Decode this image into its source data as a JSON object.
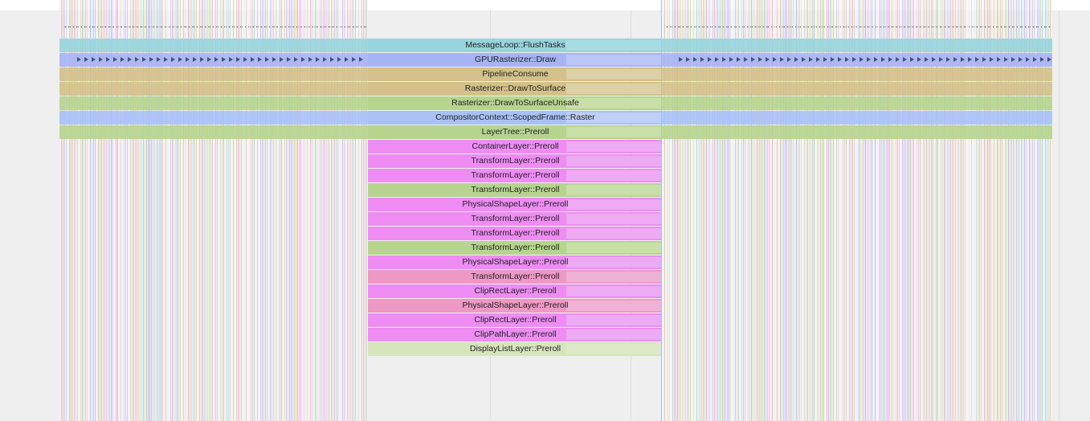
{
  "flame_chart": {
    "rows": [
      {
        "label": "MessageLoop::FlushTasks",
        "color": "#97d4dc",
        "overlay": "#a8dce3"
      },
      {
        "label": "GPURasterizer::Draw",
        "color": "#a6b4f4",
        "overlay": "#bcc6f7",
        "arrows": true
      },
      {
        "label": "PipelineConsume",
        "color": "#d4c08a",
        "overlay": "#ddd0a8"
      },
      {
        "label": "Rasterizer::DrawToSurface",
        "color": "#d4c08a",
        "overlay": "#ddd0a8"
      },
      {
        "label": "Rasterizer::DrawToSurfaceUnsafe",
        "color": "#b6d48e",
        "overlay": "#c8dfa8"
      },
      {
        "label": "CompositorContext::ScopedFrame::Raster",
        "color": "#a9c1f7",
        "overlay": "#bfd0f8"
      },
      {
        "label": "LayerTree::Preroll",
        "color": "#b6d48e",
        "overlay": "#c8dfa8"
      },
      {
        "label": "ContainerLayer::Preroll",
        "color": "#ee8cf4",
        "overlay": "#eeaaf2"
      },
      {
        "label": "TransformLayer::Preroll",
        "color": "#ee8cf4",
        "overlay": "#eeaaf2"
      },
      {
        "label": "TransformLayer::Preroll",
        "color": "#ee8cf4",
        "overlay": "#eeaaf2"
      },
      {
        "label": "TransformLayer::Preroll",
        "color": "#b6d48e",
        "overlay": "#c8dfa8"
      },
      {
        "label": "PhysicalShapeLayer::Preroll",
        "color": "#ee8cf4",
        "overlay": "#eeaaf2"
      },
      {
        "label": "TransformLayer::Preroll",
        "color": "#ee8cf4",
        "overlay": "#eeaaf2"
      },
      {
        "label": "TransformLayer::Preroll",
        "color": "#ee8cf4",
        "overlay": "#eeaaf2"
      },
      {
        "label": "TransformLayer::Preroll",
        "color": "#b6d48e",
        "overlay": "#c8dfa8"
      },
      {
        "label": "PhysicalShapeLayer::Preroll",
        "color": "#ee8cf4",
        "overlay": "#eeaaf2"
      },
      {
        "label": "TransformLayer::Preroll",
        "color": "#ee98c6",
        "overlay": "#eeb2d4"
      },
      {
        "label": "ClipRectLayer::Preroll",
        "color": "#ee8cf4",
        "overlay": "#eeaaf2"
      },
      {
        "label": "PhysicalShapeLayer::Preroll",
        "color": "#ee98c6",
        "overlay": "#eeb2d4"
      },
      {
        "label": "ClipRectLayer::Preroll",
        "color": "#ee8cf4",
        "overlay": "#eeaaf2"
      },
      {
        "label": "ClipPathLayer::Preroll",
        "color": "#ee8cf4",
        "overlay": "#eeaaf2"
      },
      {
        "label": "DisplayListLayer::Preroll",
        "color": "#d6e5bc",
        "overlay": "#dde9c8"
      }
    ],
    "stripe_palette": [
      "#d7c38e",
      "#ee9bf2",
      "#b9d690",
      "#a9b7f4",
      "#96d3db",
      "#f2a7c8",
      "#d8c6d8",
      "#c7dcae"
    ]
  }
}
